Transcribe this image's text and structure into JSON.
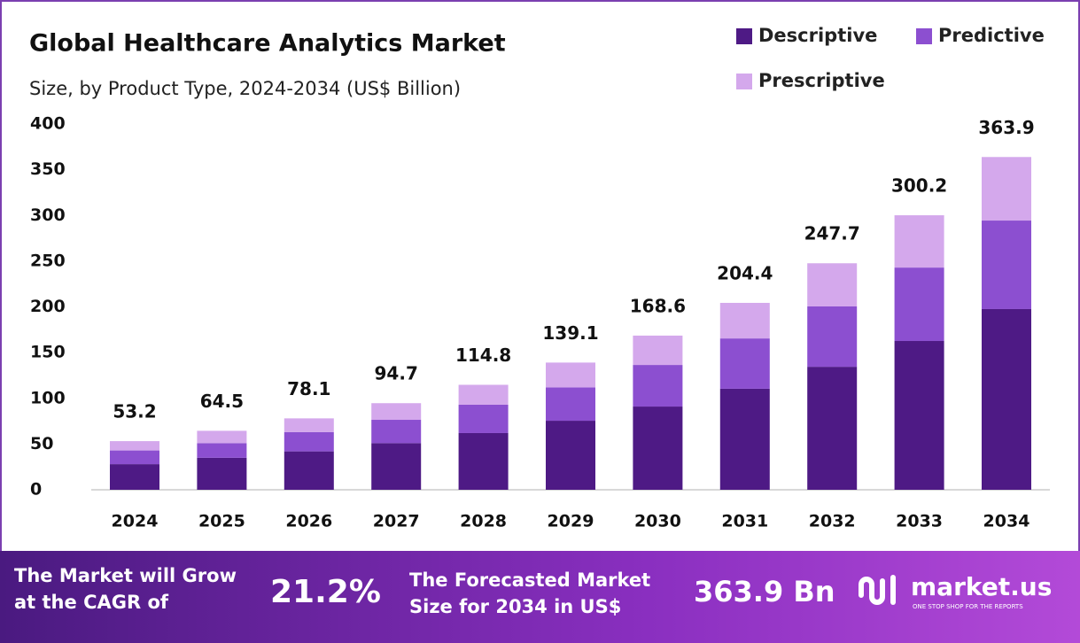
{
  "chart_data": {
    "type": "stacked_bar",
    "title": "Global Healthcare Analytics Market",
    "subtitle": "Size, by Product Type, 2024-2034 (US$ Billion)",
    "categories": [
      "2024",
      "2025",
      "2026",
      "2027",
      "2028",
      "2029",
      "2030",
      "2031",
      "2032",
      "2033",
      "2034"
    ],
    "series": [
      {
        "name": "Descriptive",
        "color": "#4e1a85",
        "values": [
          28,
          35,
          42,
          51,
          62,
          75.5,
          91,
          110.5,
          134.5,
          162.7,
          197.6
        ]
      },
      {
        "name": "Predictive",
        "color": "#8c4fd0",
        "values": [
          15,
          16,
          21,
          25.5,
          31,
          36.5,
          45.5,
          55,
          66,
          80.3,
          96.8
        ]
      },
      {
        "name": "Prescriptive",
        "color": "#d4a8ec",
        "values": [
          10.2,
          13.5,
          15.1,
          18.2,
          21.8,
          27.1,
          32.1,
          38.9,
          47.2,
          57.2,
          69.5
        ]
      }
    ],
    "totals": [
      53.2,
      64.5,
      78.1,
      94.7,
      114.8,
      139.1,
      168.6,
      204.4,
      247.7,
      300.2,
      363.9
    ],
    "ylim": [
      0,
      400
    ],
    "yticks": [
      0,
      50,
      100,
      150,
      200,
      250,
      300,
      350,
      400
    ],
    "grid": false
  },
  "footer": {
    "cagr_text": [
      "The Market will Grow",
      "at the CAGR of"
    ],
    "cagr_value": "21.2%",
    "forecast_text": [
      "The Forecasted Market",
      "Size for 2034 in US$"
    ],
    "forecast_value": "363.9 Bn",
    "brand": "market.us",
    "tagline": "ONE STOP SHOP FOR THE REPORTS"
  }
}
